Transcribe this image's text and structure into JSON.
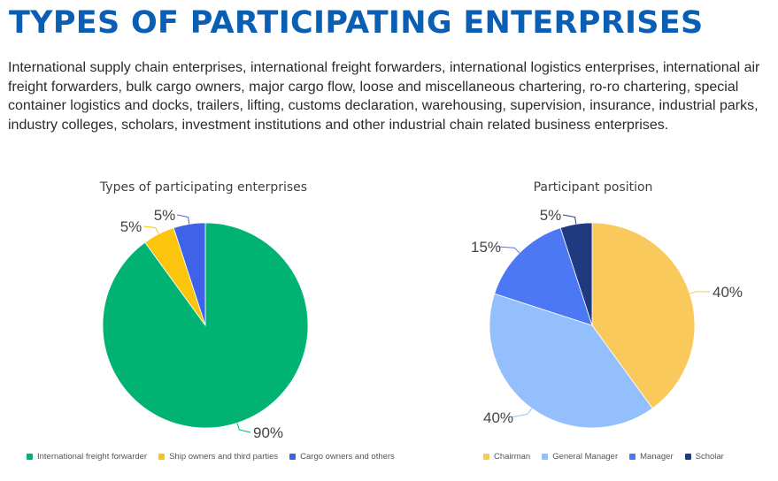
{
  "page": {
    "title": "TYPES OF PARTICIPATING ENTERPRISES",
    "intro": "International supply chain enterprises, international freight forwarders, international logistics enterprises, international air freight forwarders, bulk cargo owners, major cargo flow, loose and miscellaneous chartering, ro-ro chartering, special container logistics and docks, trailers, lifting, customs declaration, warehousing, supervision, insurance, industrial parks, industry colleges, scholars, investment institutions and other industrial chain related business enterprises."
  },
  "chart_data": [
    {
      "type": "pie",
      "title": "Types of participating enterprises",
      "categories": [
        "International freight forwarder",
        "Ship owners and third parties",
        "Cargo owners and others"
      ],
      "values": [
        90,
        5,
        5
      ],
      "labels": [
        "90%",
        "5%",
        "5%"
      ],
      "colors": [
        "#00b373",
        "#fcc40c",
        "#3e63e9"
      ],
      "legend": "bottom"
    },
    {
      "type": "pie",
      "title": "Participant position",
      "categories": [
        "Chairman",
        "General Manager",
        "Manager",
        "Scholar"
      ],
      "values": [
        40,
        40,
        15,
        5
      ],
      "labels": [
        "40%",
        "40%",
        "15%",
        "5%"
      ],
      "colors": [
        "#fac95c",
        "#94bffd",
        "#4c78f6",
        "#1f3a7e"
      ],
      "legend": "bottom"
    }
  ]
}
